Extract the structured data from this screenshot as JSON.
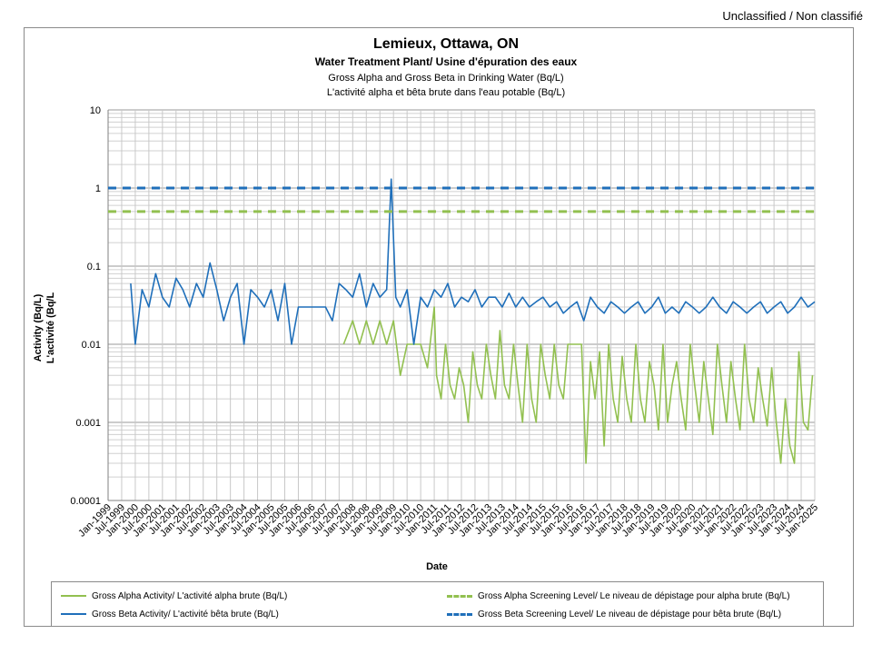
{
  "header": {
    "classification": "Unclassified / Non classifié"
  },
  "chart_data": {
    "type": "line",
    "title": "Lemieux, Ottawa, ON",
    "subtitle": "Water Treatment Plant/ Usine d'épuration des eaux",
    "subtitle2": "Gross Alpha and Gross Beta in Drinking Water (Bq/L)",
    "subtitle3": "L'activité alpha et bêta brute dans l'eau potable (Bq/L)",
    "xlabel": "Date",
    "ylabel": "Activity (Bq/L)",
    "ylabel2": "L'activité  (Bq/L",
    "y_scale": "log",
    "ylim": [
      0.0001,
      10
    ],
    "y_ticks": [
      "10",
      "1",
      "0.1",
      "0.01",
      "0.001",
      "0.0001"
    ],
    "x_ticks": [
      "Jan-1999",
      "Jul-1999",
      "Jan-2000",
      "Jul-2000",
      "Jan-2001",
      "Jul-2001",
      "Jan-2002",
      "Jul-2002",
      "Jan-2003",
      "Jul-2003",
      "Jan-2004",
      "Jul-2004",
      "Jan-2005",
      "Jul-2005",
      "Jan-2006",
      "Jul-2006",
      "Jan-2007",
      "Jul-2007",
      "Jan-2008",
      "Jul-2008",
      "Jan-2009",
      "Jul-2009",
      "Jan-2010",
      "Jul-2010",
      "Jan-2011",
      "Jul-2011",
      "Jan-2012",
      "Jul-2012",
      "Jan-2013",
      "Jul-2013",
      "Jan-2014",
      "Jul-2014",
      "Jan-2015",
      "Jul-2015",
      "Jan-2016",
      "Jul-2016",
      "Jan-2017",
      "Jul-2017",
      "Jan-2018",
      "Jul-2018",
      "Jan-2019",
      "Jul-2019",
      "Jan-2020",
      "Jul-2020",
      "Jan-2021",
      "Jul-2021",
      "Jan-2022",
      "Jul-2022",
      "Jan-2023",
      "Jul-2023",
      "Jan-2024",
      "Jul-2024",
      "Jan-2025"
    ],
    "grid": true,
    "legend_position": "bottom",
    "series": [
      {
        "name": "Gross Alpha Activity/ L'activité alpha brute (Bq/L)",
        "color": "#92c050",
        "style": "solid",
        "x": [
          "2007-09",
          "2008-01",
          "2008-04",
          "2008-07",
          "2008-10",
          "2009-01",
          "2009-04",
          "2009-07",
          "2009-10",
          "2010-01",
          "2010-04",
          "2010-07",
          "2010-10",
          "2011-01",
          "2011-02",
          "2011-04",
          "2011-06",
          "2011-08",
          "2011-10",
          "2011-12",
          "2012-02",
          "2012-04",
          "2012-06",
          "2012-08",
          "2012-10",
          "2012-12",
          "2013-02",
          "2013-04",
          "2013-06",
          "2013-08",
          "2013-10",
          "2013-12",
          "2014-02",
          "2014-04",
          "2014-06",
          "2014-08",
          "2014-10",
          "2014-12",
          "2015-02",
          "2015-04",
          "2015-06",
          "2015-08",
          "2015-10",
          "2015-12",
          "2016-02",
          "2016-04",
          "2016-06",
          "2016-08",
          "2016-10",
          "2016-12",
          "2017-02",
          "2017-04",
          "2017-06",
          "2017-08",
          "2017-10",
          "2017-12",
          "2018-02",
          "2018-04",
          "2018-06",
          "2018-08",
          "2018-10",
          "2018-12",
          "2019-02",
          "2019-04",
          "2019-06",
          "2019-08",
          "2019-10",
          "2019-12",
          "2020-02",
          "2020-04",
          "2020-06",
          "2020-08",
          "2020-10",
          "2020-12",
          "2021-02",
          "2021-04",
          "2021-06",
          "2021-08",
          "2021-10",
          "2021-12",
          "2022-02",
          "2022-04",
          "2022-06",
          "2022-08",
          "2022-10",
          "2022-12",
          "2023-02",
          "2023-04",
          "2023-06",
          "2023-08",
          "2023-10",
          "2023-12",
          "2024-02",
          "2024-04",
          "2024-06",
          "2024-08",
          "2024-10",
          "2024-12"
        ],
        "values": [
          0.01,
          0.02,
          0.01,
          0.02,
          0.01,
          0.02,
          0.01,
          0.02,
          0.004,
          0.01,
          0.01,
          0.01,
          0.005,
          0.03,
          0.004,
          0.002,
          0.01,
          0.003,
          0.002,
          0.005,
          0.003,
          0.001,
          0.008,
          0.003,
          0.002,
          0.01,
          0.004,
          0.002,
          0.015,
          0.003,
          0.002,
          0.01,
          0.003,
          0.001,
          0.01,
          0.002,
          0.001,
          0.01,
          0.004,
          0.002,
          0.01,
          0.003,
          0.002,
          0.01,
          0.01,
          0.01,
          0.01,
          0.0003,
          0.006,
          0.002,
          0.008,
          0.0005,
          0.01,
          0.002,
          0.001,
          0.007,
          0.002,
          0.001,
          0.01,
          0.002,
          0.001,
          0.006,
          0.003,
          0.0008,
          0.01,
          0.001,
          0.003,
          0.006,
          0.002,
          0.0008,
          0.01,
          0.003,
          0.001,
          0.006,
          0.002,
          0.0007,
          0.01,
          0.003,
          0.001,
          0.006,
          0.002,
          0.0008,
          0.01,
          0.002,
          0.001,
          0.005,
          0.002,
          0.0009,
          0.005,
          0.001,
          0.0003,
          0.002,
          0.0005,
          0.0003,
          0.008,
          0.001,
          0.0008,
          0.004
        ]
      },
      {
        "name": "Gross Beta Activity/ L'activité bêta brute (Bq/L)",
        "color": "#1f6fba",
        "style": "solid",
        "x": [
          "1999-11",
          "2000-01",
          "2000-04",
          "2000-07",
          "2000-10",
          "2001-01",
          "2001-04",
          "2001-07",
          "2001-10",
          "2002-01",
          "2002-04",
          "2002-07",
          "2002-10",
          "2003-01",
          "2003-04",
          "2003-07",
          "2003-10",
          "2004-01",
          "2004-04",
          "2004-07",
          "2004-10",
          "2005-01",
          "2005-04",
          "2005-07",
          "2005-10",
          "2006-01",
          "2006-06",
          "2007-01",
          "2007-04",
          "2007-07",
          "2007-10",
          "2008-01",
          "2008-04",
          "2008-07",
          "2008-10",
          "2009-01",
          "2009-04",
          "2009-06",
          "2009-08",
          "2009-10",
          "2010-01",
          "2010-04",
          "2010-07",
          "2010-10",
          "2011-01",
          "2011-04",
          "2011-07",
          "2011-10",
          "2012-01",
          "2012-04",
          "2012-07",
          "2012-10",
          "2013-01",
          "2013-04",
          "2013-07",
          "2013-10",
          "2014-01",
          "2014-04",
          "2014-07",
          "2014-10",
          "2015-01",
          "2015-04",
          "2015-07",
          "2015-10",
          "2016-01",
          "2016-04",
          "2016-07",
          "2016-10",
          "2017-01",
          "2017-04",
          "2017-07",
          "2017-10",
          "2018-01",
          "2018-04",
          "2018-07",
          "2018-10",
          "2019-01",
          "2019-04",
          "2019-07",
          "2019-10",
          "2020-01",
          "2020-04",
          "2020-07",
          "2020-10",
          "2021-01",
          "2021-04",
          "2021-07",
          "2021-10",
          "2022-01",
          "2022-04",
          "2022-07",
          "2022-10",
          "2023-01",
          "2023-04",
          "2023-07",
          "2023-10",
          "2024-01",
          "2024-04",
          "2024-07",
          "2024-10",
          "2025-01"
        ],
        "values": [
          0.06,
          0.01,
          0.05,
          0.03,
          0.08,
          0.04,
          0.03,
          0.07,
          0.05,
          0.03,
          0.06,
          0.04,
          0.11,
          0.05,
          0.02,
          0.04,
          0.06,
          0.01,
          0.05,
          0.04,
          0.03,
          0.05,
          0.02,
          0.06,
          0.01,
          0.03,
          0.03,
          0.03,
          0.02,
          0.06,
          0.05,
          0.04,
          0.08,
          0.03,
          0.06,
          0.04,
          0.05,
          1.3,
          0.04,
          0.03,
          0.05,
          0.01,
          0.04,
          0.03,
          0.05,
          0.04,
          0.06,
          0.03,
          0.04,
          0.035,
          0.05,
          0.03,
          0.04,
          0.04,
          0.03,
          0.045,
          0.03,
          0.04,
          0.03,
          0.035,
          0.04,
          0.03,
          0.035,
          0.025,
          0.03,
          0.035,
          0.02,
          0.04,
          0.03,
          0.025,
          0.035,
          0.03,
          0.025,
          0.03,
          0.035,
          0.025,
          0.03,
          0.04,
          0.025,
          0.03,
          0.025,
          0.035,
          0.03,
          0.025,
          0.03,
          0.04,
          0.03,
          0.025,
          0.035,
          0.03,
          0.025,
          0.03,
          0.035,
          0.025,
          0.03,
          0.035,
          0.025,
          0.03,
          0.04,
          0.03,
          0.035
        ]
      },
      {
        "name": "Gross Alpha Screening Level/ Le niveau de dépistage pour alpha brute (Bq/L)",
        "color": "#92c050",
        "style": "dashed",
        "x": [
          "1999-01",
          "2025-01"
        ],
        "values": [
          0.5,
          0.5
        ]
      },
      {
        "name": "Gross Beta Screening Level/ Le niveau de dépistage pour bêta brute (Bq/L)",
        "color": "#1f6fba",
        "style": "dashed",
        "x": [
          "1999-01",
          "2025-01"
        ],
        "values": [
          1,
          1
        ]
      }
    ]
  }
}
